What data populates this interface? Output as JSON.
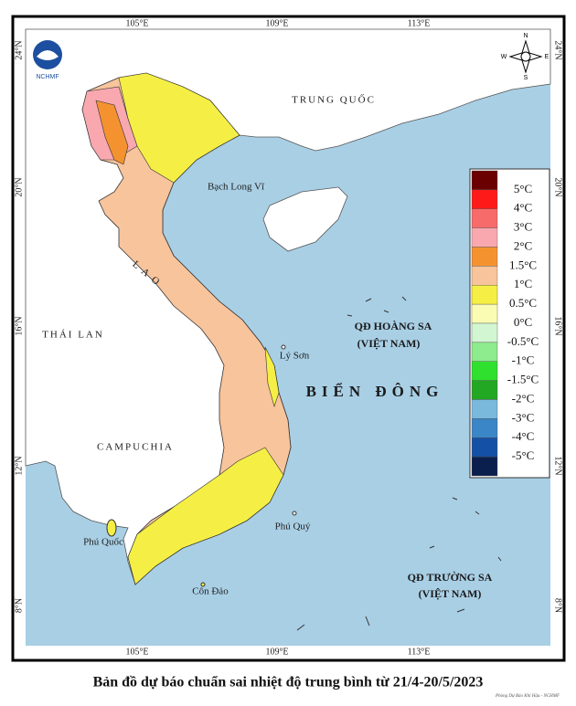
{
  "map": {
    "title": "Bản đồ dự báo chuẩn sai nhiệt độ trung bình từ 21/4-20/5/2023",
    "logo": "NCHMF",
    "credit": "Phòng Dự Báo Khí Hậu - NCHMF",
    "compass": [
      "N",
      "E",
      "S",
      "W"
    ],
    "longitudes": [
      "105°E",
      "109°E",
      "113°E"
    ],
    "latitudes": [
      "24°N",
      "20°N",
      "16°N",
      "12°N",
      "8°N"
    ],
    "places": [
      "TRUNG QUỐC",
      "Bạch Long Vĩ",
      "L A O",
      "THÁI LAN",
      "CAMPUCHIA",
      "QĐ HOÀNG SA",
      "(VIỆT NAM)",
      "Lý Sơn",
      "BIỂN ĐÔNG",
      "Phú Quý",
      "Phú Quốc",
      "Côn Đảo",
      "QĐ TRƯỜNG SA",
      "(VIỆT NAM)"
    ],
    "legend": {
      "colors": [
        "#6b0000",
        "#ff1a1a",
        "#f76b6b",
        "#f9a8b0",
        "#f59230",
        "#f8c49c",
        "#f5ef45",
        "#fafcb4",
        "#d2f5d2",
        "#8eeb8e",
        "#2fe02f",
        "#22a822",
        "#7ab8dc",
        "#3a86c6",
        "#1450a6",
        "#0a1f4e"
      ],
      "labels": [
        "5°C",
        "4°C",
        "3°C",
        "2°C",
        "1.5°C",
        "1°C",
        "0.5°C",
        "0°C",
        "-0.5°C",
        "-1°C",
        "-1.5°C",
        "-2°C",
        "-3°C",
        "-4°C",
        "-5°C"
      ]
    }
  }
}
